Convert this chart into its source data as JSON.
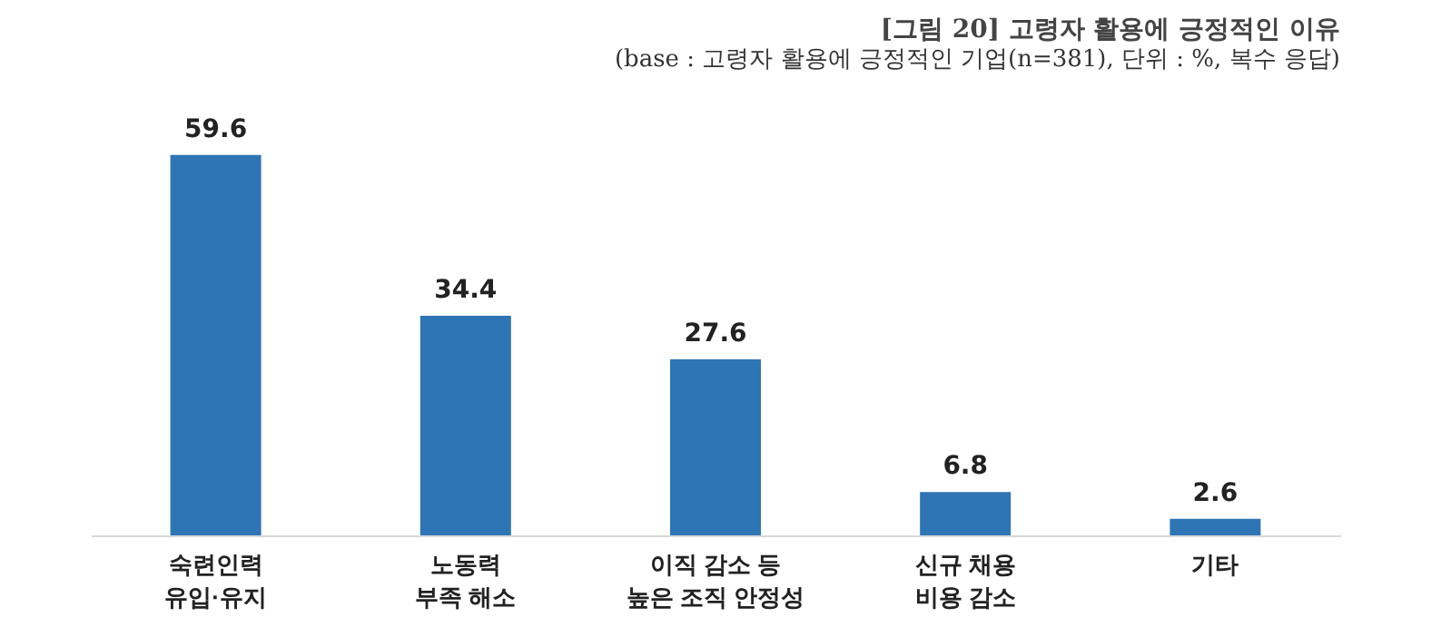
{
  "chart_data": {
    "type": "bar",
    "title": "[그림 20] 고령자 활용에 긍정적인 이유",
    "subtitle": "(base : 고령자 활용에 긍정적인 기업(n=381), 단위 : %, 복수 응답)",
    "categories": [
      "숙련인력\n유입·유지",
      "노동력\n부족 해소",
      "이직 감소 등\n높은 조직 안정성",
      "신규 채용\n비용 감소",
      "기타"
    ],
    "values": [
      59.6,
      34.4,
      27.6,
      6.8,
      2.6
    ],
    "color": "#2e75b6",
    "data_labels": true
  }
}
